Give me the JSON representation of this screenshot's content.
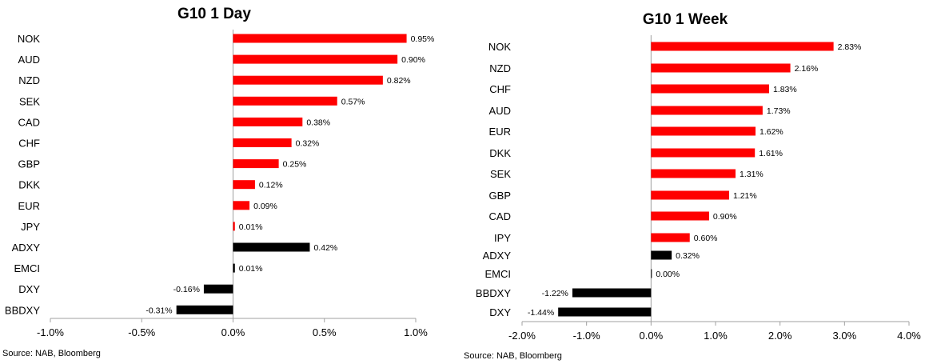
{
  "colors": {
    "positive_bar": "#ff0000",
    "index_bar": "#000000",
    "axis": "#a0a0a0"
  },
  "chart_data": [
    {
      "type": "bar",
      "orientation": "horizontal",
      "title": "G10 1 Day",
      "source": "Source: NAB, Bloomberg",
      "categories": [
        "NOK",
        "AUD",
        "NZD",
        "SEK",
        "CAD",
        "CHF",
        "GBP",
        "DKK",
        "EUR",
        "JPY",
        "ADXY",
        "EMCI",
        "DXY",
        "BBDXY"
      ],
      "values": [
        0.95,
        0.9,
        0.82,
        0.57,
        0.38,
        0.32,
        0.25,
        0.12,
        0.09,
        0.01,
        0.42,
        0.01,
        -0.16,
        -0.31
      ],
      "value_labels": [
        "0.95%",
        "0.90%",
        "0.82%",
        "0.57%",
        "0.38%",
        "0.32%",
        "0.25%",
        "0.12%",
        "0.09%",
        "0.01%",
        "0.42%",
        "0.01%",
        "-0.16%",
        "-0.31%"
      ],
      "bar_colors": [
        "red",
        "red",
        "red",
        "red",
        "red",
        "red",
        "red",
        "red",
        "red",
        "red",
        "black",
        "black",
        "black",
        "black"
      ],
      "xlim": [
        -1.0,
        1.0
      ],
      "xticks": [
        -1.0,
        -0.5,
        0.0,
        0.5,
        1.0
      ],
      "xtick_labels": [
        "-1.0%",
        "-0.5%",
        "0.0%",
        "0.5%",
        "1.0%"
      ],
      "grid": false,
      "legend": "none"
    },
    {
      "type": "bar",
      "orientation": "horizontal",
      "title": "G10 1 Week",
      "source": "Source: NAB, Bloomberg",
      "categories": [
        "NOK",
        "NZD",
        "CHF",
        "AUD",
        "EUR",
        "DKK",
        "SEK",
        "GBP",
        "CAD",
        "IPY",
        "ADXY",
        "EMCI",
        "BBDXY",
        "DXY"
      ],
      "values": [
        2.83,
        2.16,
        1.83,
        1.73,
        1.62,
        1.61,
        1.31,
        1.21,
        0.9,
        0.6,
        0.32,
        0.0,
        -1.22,
        -1.44
      ],
      "value_labels": [
        "2.83%",
        "2.16%",
        "1.83%",
        "1.73%",
        "1.62%",
        "1.61%",
        "1.31%",
        "1.21%",
        "0.90%",
        "0.60%",
        "0.32%",
        "0.00%",
        "-1.22%",
        "-1.44%"
      ],
      "bar_colors": [
        "red",
        "red",
        "red",
        "red",
        "red",
        "red",
        "red",
        "red",
        "red",
        "red",
        "black",
        "black",
        "black",
        "black"
      ],
      "xlim": [
        -2.0,
        4.0
      ],
      "xticks": [
        -2.0,
        -1.0,
        0.0,
        1.0,
        2.0,
        3.0,
        4.0
      ],
      "xtick_labels": [
        "-2.0%",
        "-1.0%",
        "0.0%",
        "1.0%",
        "2.0%",
        "3.0%",
        "4.0%"
      ],
      "grid": false,
      "legend": "none"
    }
  ]
}
